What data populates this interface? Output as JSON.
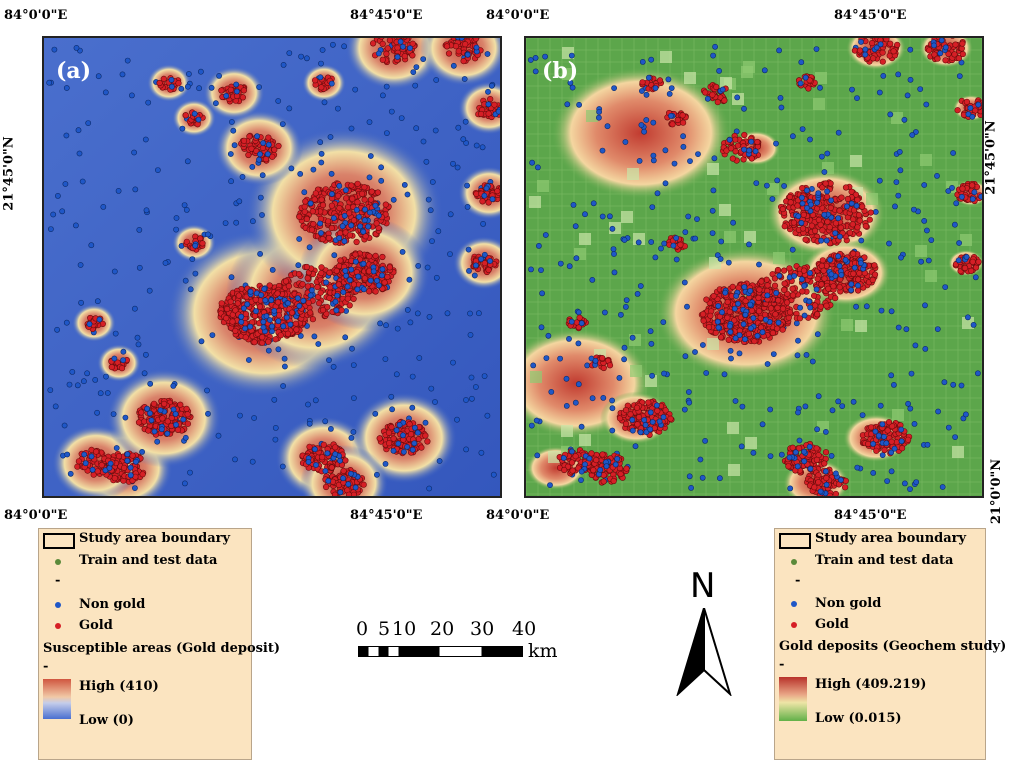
{
  "maps": {
    "a": {
      "label": "(a)",
      "top_left": "84°0'0\"E",
      "top_mid": "84°45'0\"E",
      "bottom_left": "84°0'0\"E",
      "bottom_mid": "84°45'0\"E",
      "left_lat": "21°45'0\"N"
    },
    "b": {
      "label": "(b)",
      "top_left": "84°0'0\"E",
      "top_mid": "84°45'0\"E",
      "bottom_left": "84°0'0\"E",
      "bottom_mid": "84°45'0\"E",
      "right_lat_top": "21°45'0\"N",
      "right_lat_bottom": "21°0'0\"N"
    }
  },
  "legend_a": {
    "boundary": "Study area boundary",
    "train": "Train and test data",
    "dash": "-",
    "non_gold": "Non gold",
    "gold": "Gold",
    "title": "Susceptible areas (Gold deposit)",
    "dash2": "-",
    "high": "High (410)",
    "low": "Low  (0)"
  },
  "legend_b": {
    "boundary": "Study area boundary",
    "train": "Train and test data",
    "dash": "-",
    "non_gold": "Non gold",
    "gold": "Gold",
    "title": "Gold deposits (Geochem study)",
    "dash2": "-",
    "high": "High  (409.219)",
    "low": "Low  (0.015)"
  },
  "scale_bar": {
    "ticks": [
      "0",
      "5",
      "10",
      "20",
      "30",
      "40"
    ],
    "unit": "km"
  },
  "north_arrow": {
    "letter": "N"
  },
  "colors": {
    "map_a_bg": "#3b62c4",
    "map_a_high": "#c9483a",
    "map_a_mid": "#f2e0a6",
    "map_b_bg": "#5aa84a",
    "map_b_high": "#c13b30",
    "map_b_mid": "#f4d6a0",
    "gold_point": "#d61f26",
    "non_gold_point": "#1f57c7",
    "legend_bg": "#fbe4c0"
  }
}
